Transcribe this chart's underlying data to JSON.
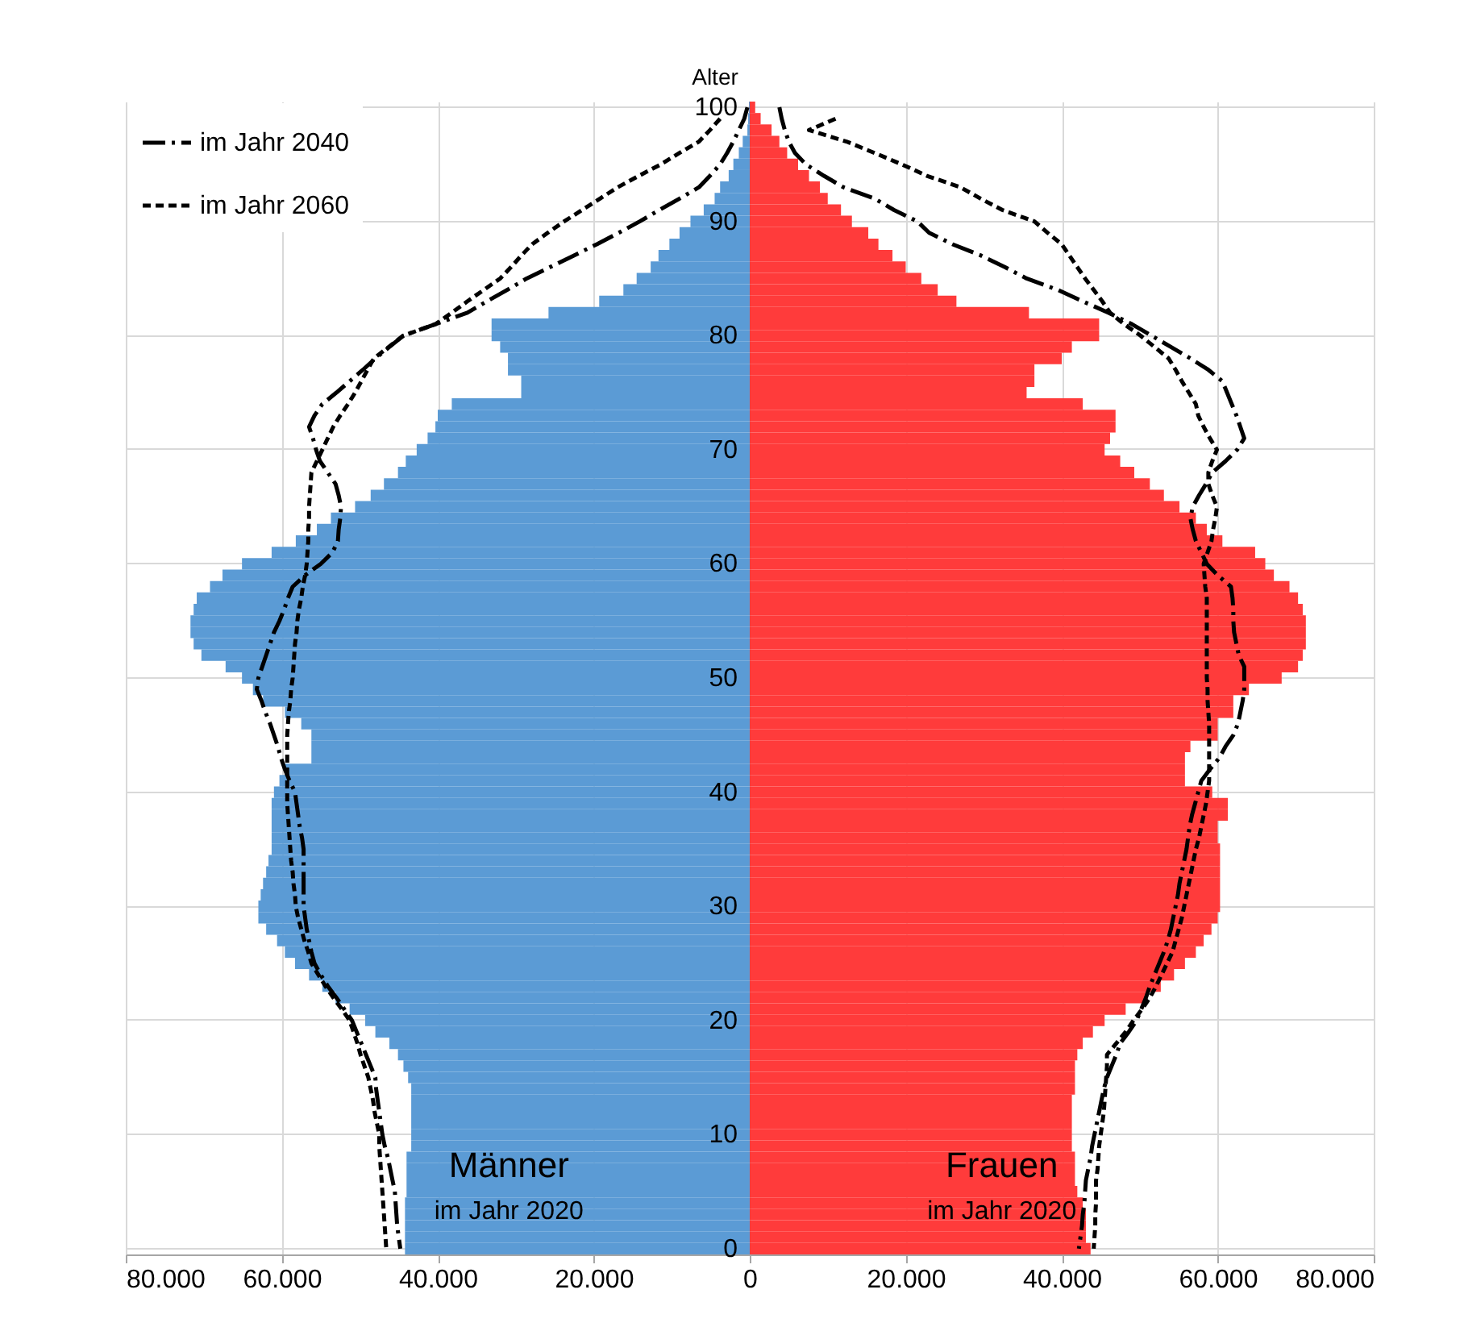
{
  "chart_data": {
    "type": "bar",
    "orientation": "horizontal",
    "ylabel": "Alter",
    "categories": [
      "100",
      null,
      null,
      null,
      null,
      null,
      null,
      null,
      null,
      null,
      "90",
      null,
      null,
      null,
      null,
      null,
      null,
      null,
      null,
      null,
      "80",
      null,
      null,
      null,
      null,
      null,
      null,
      null,
      null,
      null,
      "70",
      null,
      null,
      null,
      null,
      null,
      null,
      null,
      null,
      null,
      "60",
      null,
      null,
      null,
      null,
      null,
      null,
      null,
      null,
      null,
      "50",
      null,
      null,
      null,
      null,
      null,
      null,
      null,
      null,
      null,
      "40",
      null,
      null,
      null,
      null,
      null,
      null,
      null,
      null,
      null,
      "30",
      null,
      null,
      null,
      null,
      null,
      null,
      null,
      null,
      null,
      "20",
      null,
      null,
      null,
      null,
      null,
      null,
      null,
      null,
      null,
      "10",
      null,
      null,
      null,
      null,
      null,
      null,
      null,
      null,
      null,
      "0"
    ],
    "xlim": [
      -80000,
      80000
    ],
    "xticks": [
      {
        "value": -80000,
        "label": "80.000"
      },
      {
        "value": -60000,
        "label": "60.000"
      },
      {
        "value": -40000,
        "label": "40.000"
      },
      {
        "value": -20000,
        "label": "20.000"
      },
      0,
      {
        "value": 20000,
        "label": "20.000"
      },
      {
        "value": 40000,
        "label": "40.000"
      },
      {
        "value": 60000,
        "label": "60.000"
      },
      {
        "value": 80000,
        "label": "80.000"
      }
    ],
    "grid": true,
    "legend": "top left",
    "stacked": true,
    "annotations": [
      "Männer",
      "im Jahr 2020",
      "Frauen",
      "im Jahr 2020"
    ],
    "series": [
      {
        "color": "#5b9bd5",
        "values": [
          -100,
          -200,
          -300,
          -900,
          -1400,
          -2100,
          -2700,
          -3800,
          -4500,
          -5900,
          -7600,
          -9000,
          -10300,
          -11700,
          -12700,
          -14500,
          -16200,
          -19300,
          -25800,
          -33100,
          -33100,
          -32000,
          -31000,
          -31000,
          -29300,
          -29300,
          -38200,
          -40000,
          -40300,
          -41300,
          -42700,
          -44100,
          -45100,
          -46900,
          -48600,
          -50600,
          -53700,
          -55500,
          -58200,
          -61300,
          -65100,
          -67600,
          -69200,
          -70900,
          -71300,
          -71700,
          -71700,
          -71300,
          -70300,
          -67200,
          -65100,
          -63700,
          -62400,
          -59600,
          -57500,
          -56200,
          -56200,
          -56200,
          -59600,
          -60300,
          -61000,
          -61300,
          -61300,
          -61300,
          -61300,
          -61300,
          -61700,
          -62000,
          -62400,
          -62700,
          -63000,
          -63000,
          -62000,
          -60600,
          -59600,
          -58300,
          -56500,
          -54800,
          -53100,
          -51300,
          -49300,
          -48000,
          -46200,
          -45100,
          -44400,
          -43800,
          -43400,
          -43400,
          -43400,
          -43400,
          -43400,
          -43400,
          -44000,
          -44000,
          -44000,
          -44000,
          -44200,
          -44200,
          -44200,
          -44200,
          -44200
        ]
      },
      {
        "color": "#ff3b3b",
        "values": [
          700,
          1400,
          2800,
          3800,
          4800,
          6200,
          7600,
          9000,
          10000,
          11700,
          13100,
          15200,
          16500,
          18300,
          20000,
          22000,
          24100,
          26500,
          35800,
          44800,
          44800,
          41300,
          40000,
          36500,
          36500,
          35500,
          42700,
          46900,
          46900,
          46200,
          45500,
          47500,
          49300,
          51300,
          53100,
          55100,
          57200,
          58600,
          60600,
          64800,
          66100,
          67200,
          69200,
          70300,
          70900,
          71300,
          71300,
          71300,
          70900,
          70300,
          68200,
          64000,
          62000,
          62000,
          60000,
          60000,
          56500,
          55800,
          55800,
          55800,
          59300,
          61300,
          61300,
          60000,
          60000,
          60300,
          60300,
          60300,
          60300,
          60300,
          60300,
          60000,
          59200,
          58200,
          57200,
          55800,
          54400,
          52700,
          51000,
          48200,
          45500,
          44000,
          42700,
          42000,
          41700,
          41700,
          41700,
          41300,
          41300,
          41300,
          41300,
          41300,
          41700,
          41700,
          41700,
          42000,
          42700,
          43100,
          43100,
          43100,
          43700
        ]
      },
      {
        "type": "line",
        "name": "im Jahr 2040",
        "color": "#000000",
        "line_style": "dashdot",
        "values": [
          -300,
          -700,
          -1400,
          -2100,
          -2900,
          -3800,
          -5100,
          -6500,
          -9000,
          -11600,
          -14100,
          -16800,
          -19600,
          -22600,
          -25600,
          -28600,
          -31100,
          -33700,
          -36200,
          -40300,
          -44400,
          -46200,
          -48000,
          -49600,
          -51300,
          -53000,
          -54800,
          -55800,
          -56500,
          -56000,
          -55600,
          -55100,
          -54100,
          -53100,
          -52700,
          -52400,
          -52500,
          -52700,
          -52800,
          -53500,
          -55000,
          -57000,
          -58600,
          -59200,
          -59700,
          -60300,
          -61000,
          -61500,
          -62000,
          -62500,
          -63000,
          -63200,
          -62600,
          -62100,
          -61500,
          -61000,
          -60500,
          -60100,
          -59600,
          -59000,
          -58300,
          -58100,
          -57900,
          -57700,
          -57400,
          -57200,
          -57200,
          -57200,
          -57200,
          -57200,
          -57200,
          -57000,
          -56800,
          -56500,
          -56200,
          -55800,
          -55000,
          -54100,
          -53000,
          -52000,
          -51000,
          -50400,
          -49800,
          -49200,
          -48600,
          -48000,
          -47900,
          -47700,
          -47500,
          -47300,
          -47100,
          -46800,
          -46400,
          -46100,
          -45800,
          -45500,
          -45400,
          -45300,
          -45200,
          -45000,
          -44800
        ]
      },
      {
        "type": "line",
        "color": "#000000",
        "line_style": "dashdot",
        "values": [
          3800,
          4100,
          4500,
          5000,
          5800,
          7200,
          9500,
          12000,
          16000,
          18500,
          21500,
          23000,
          26000,
          29700,
          32700,
          35500,
          39500,
          42700,
          46000,
          49000,
          51500,
          54000,
          56500,
          58800,
          60600,
          61200,
          61800,
          62400,
          62900,
          63400,
          62500,
          61000,
          59300,
          58500,
          57600,
          56800,
          56500,
          56800,
          57200,
          57900,
          58600,
          60000,
          61700,
          61900,
          62000,
          62000,
          62100,
          62400,
          62700,
          63400,
          63400,
          63400,
          63200,
          62900,
          62600,
          62000,
          61000,
          60200,
          59000,
          57900,
          57500,
          57100,
          56700,
          56400,
          56200,
          56000,
          55700,
          55400,
          55100,
          54900,
          54600,
          54300,
          54000,
          53600,
          53100,
          52500,
          51900,
          51300,
          50800,
          50200,
          49600,
          48600,
          47500,
          47000,
          46400,
          45800,
          45400,
          45100,
          44800,
          44500,
          44200,
          43900,
          43700,
          43400,
          43100,
          43000,
          42900,
          42700,
          42600,
          42400,
          42200
        ]
      },
      {
        "type": "line",
        "name": "im Jahr 2060",
        "color": "#000000",
        "line_style": "dashed",
        "values": [
          null,
          -3800,
          -5100,
          -6500,
          -9000,
          -11400,
          -14200,
          -16900,
          -19200,
          -21500,
          -23800,
          -25900,
          -27900,
          -29300,
          -30600,
          -32000,
          -34100,
          -36200,
          -38200,
          -40300,
          -44400,
          -46300,
          -48200,
          -49000,
          -49800,
          -50600,
          -51500,
          -52500,
          -53400,
          -54100,
          -54800,
          -55500,
          -56200,
          -56300,
          -56400,
          -56500,
          -56500,
          -56600,
          -56600,
          -56700,
          -56800,
          -57000,
          -57300,
          -57500,
          -57800,
          -58000,
          -58100,
          -58300,
          -58400,
          -58500,
          -58600,
          -58800,
          -58900,
          -59100,
          -59200,
          -59300,
          -59300,
          -59300,
          -59300,
          -59300,
          -59300,
          -59300,
          -59200,
          -59100,
          -59000,
          -58900,
          -58800,
          -58600,
          -58500,
          -58300,
          -58200,
          -57900,
          -57500,
          -57100,
          -56600,
          -56200,
          -55300,
          -54400,
          -53400,
          -52300,
          -51300,
          -50800,
          -50300,
          -49900,
          -49400,
          -48900,
          -48600,
          -48300,
          -48100,
          -47800,
          -47500,
          -47500,
          -47400,
          -47300,
          -47200,
          -47100,
          -47000,
          -46900,
          -46800,
          -46700,
          -46600
        ]
      },
      {
        "type": "line",
        "color": "#000000",
        "line_style": "dashed",
        "values": [
          null,
          11000,
          7600,
          12400,
          16000,
          19500,
          22700,
          27000,
          29600,
          32400,
          36500,
          38200,
          40000,
          41000,
          42000,
          43000,
          44100,
          45200,
          46200,
          48000,
          50100,
          51900,
          53700,
          54600,
          55400,
          56300,
          57200,
          57500,
          58200,
          59000,
          59900,
          59300,
          58800,
          58800,
          59300,
          59900,
          59700,
          59400,
          59200,
          58700,
          58200,
          58300,
          58400,
          58600,
          58600,
          58600,
          58600,
          58600,
          58600,
          58600,
          58600,
          58700,
          58700,
          58800,
          58900,
          58900,
          58900,
          58900,
          58900,
          58900,
          58700,
          58500,
          58200,
          57900,
          57600,
          57200,
          56900,
          56600,
          56300,
          56000,
          55700,
          55400,
          55000,
          54600,
          54200,
          53500,
          52800,
          52100,
          51300,
          50300,
          49200,
          48200,
          47000,
          45800,
          45800,
          45700,
          45600,
          45500,
          45400,
          45200,
          45000,
          44800,
          44700,
          44600,
          44400,
          44400,
          44400,
          44300,
          44300,
          44200,
          44100
        ]
      }
    ]
  }
}
